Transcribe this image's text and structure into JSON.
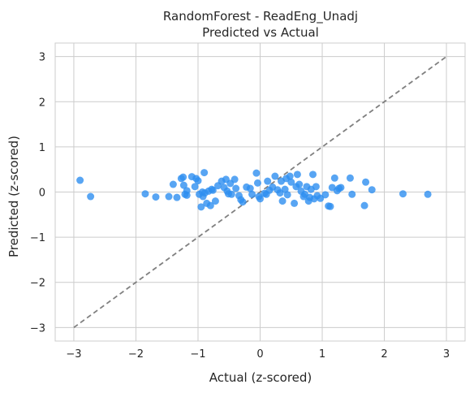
{
  "chart_data": {
    "type": "scatter",
    "title": "RandomForest - ReadEng_Unadj",
    "subtitle": "Predicted vs Actual",
    "xlabel": "Actual (z-scored)",
    "ylabel": "Predicted (z-scored)",
    "xlim": [
      -3.3,
      3.3
    ],
    "ylim": [
      -3.3,
      3.3
    ],
    "xticks": [
      -3,
      -2,
      -1,
      0,
      1,
      2,
      3
    ],
    "yticks": [
      -3,
      -2,
      -1,
      0,
      1,
      2,
      3
    ],
    "xtick_labels": [
      "−3",
      "−2",
      "−1",
      "0",
      "1",
      "2",
      "3"
    ],
    "ytick_labels": [
      "−3",
      "−2",
      "−1",
      "0",
      "1",
      "2",
      "3"
    ],
    "grid": true,
    "point_color": "#2e8ff0",
    "reference_line": {
      "style": "dashed",
      "color": "#808080",
      "x": [
        -3,
        3
      ],
      "y": [
        -3,
        3
      ]
    },
    "points": [
      {
        "x": -2.9,
        "y": 0.26
      },
      {
        "x": -2.73,
        "y": -0.1
      },
      {
        "x": -1.85,
        "y": -0.04
      },
      {
        "x": -1.68,
        "y": -0.11
      },
      {
        "x": -1.47,
        "y": -0.1
      },
      {
        "x": -1.4,
        "y": 0.17
      },
      {
        "x": -1.34,
        "y": -0.12
      },
      {
        "x": -1.27,
        "y": 0.3
      },
      {
        "x": -1.24,
        "y": 0.33
      },
      {
        "x": -1.23,
        "y": 0.15
      },
      {
        "x": -1.21,
        "y": -0.05
      },
      {
        "x": -1.18,
        "y": -0.07
      },
      {
        "x": -1.18,
        "y": 0.03
      },
      {
        "x": -1.1,
        "y": 0.34
      },
      {
        "x": -1.05,
        "y": 0.12
      },
      {
        "x": -1.03,
        "y": 0.3
      },
      {
        "x": -1.0,
        "y": 0.25
      },
      {
        "x": -0.98,
        "y": -0.05
      },
      {
        "x": -0.95,
        "y": -0.33
      },
      {
        "x": -0.93,
        "y": 0.0
      },
      {
        "x": -0.92,
        "y": -0.1
      },
      {
        "x": -0.9,
        "y": 0.43
      },
      {
        "x": -0.89,
        "y": -0.02
      },
      {
        "x": -0.86,
        "y": -0.25
      },
      {
        "x": -0.83,
        "y": 0.02
      },
      {
        "x": -0.8,
        "y": -0.3
      },
      {
        "x": -0.78,
        "y": 0.06
      },
      {
        "x": -0.76,
        "y": 0.04
      },
      {
        "x": -0.72,
        "y": -0.2
      },
      {
        "x": -0.68,
        "y": 0.14
      },
      {
        "x": -0.62,
        "y": 0.24
      },
      {
        "x": -0.58,
        "y": 0.1
      },
      {
        "x": -0.55,
        "y": 0.28
      },
      {
        "x": -0.53,
        "y": 0.02
      },
      {
        "x": -0.51,
        "y": -0.04
      },
      {
        "x": -0.48,
        "y": 0.19
      },
      {
        "x": -0.46,
        "y": -0.05
      },
      {
        "x": -0.41,
        "y": 0.28
      },
      {
        "x": -0.39,
        "y": 0.08
      },
      {
        "x": -0.34,
        "y": -0.08
      },
      {
        "x": -0.31,
        "y": -0.17
      },
      {
        "x": -0.28,
        "y": -0.22
      },
      {
        "x": -0.22,
        "y": 0.11
      },
      {
        "x": -0.16,
        "y": 0.08
      },
      {
        "x": -0.13,
        "y": -0.05
      },
      {
        "x": -0.06,
        "y": 0.42
      },
      {
        "x": -0.04,
        "y": 0.2
      },
      {
        "x": -0.02,
        "y": -0.1
      },
      {
        "x": 0.0,
        "y": -0.15
      },
      {
        "x": 0.07,
        "y": -0.03
      },
      {
        "x": 0.1,
        "y": -0.05
      },
      {
        "x": 0.12,
        "y": 0.24
      },
      {
        "x": 0.15,
        "y": 0.04
      },
      {
        "x": 0.2,
        "y": 0.11
      },
      {
        "x": 0.24,
        "y": 0.35
      },
      {
        "x": 0.28,
        "y": 0.05
      },
      {
        "x": 0.32,
        "y": -0.02
      },
      {
        "x": 0.34,
        "y": 0.24
      },
      {
        "x": 0.36,
        "y": -0.2
      },
      {
        "x": 0.4,
        "y": 0.06
      },
      {
        "x": 0.42,
        "y": 0.3
      },
      {
        "x": 0.44,
        "y": -0.06
      },
      {
        "x": 0.48,
        "y": 0.35
      },
      {
        "x": 0.5,
        "y": 0.22
      },
      {
        "x": 0.55,
        "y": -0.25
      },
      {
        "x": 0.58,
        "y": 0.12
      },
      {
        "x": 0.6,
        "y": 0.39
      },
      {
        "x": 0.63,
        "y": 0.17
      },
      {
        "x": 0.66,
        "y": 0.02
      },
      {
        "x": 0.7,
        "y": -0.1
      },
      {
        "x": 0.72,
        "y": -0.05
      },
      {
        "x": 0.75,
        "y": 0.12
      },
      {
        "x": 0.78,
        "y": -0.2
      },
      {
        "x": 0.8,
        "y": -0.12
      },
      {
        "x": 0.82,
        "y": 0.06
      },
      {
        "x": 0.85,
        "y": 0.39
      },
      {
        "x": 0.87,
        "y": -0.15
      },
      {
        "x": 0.9,
        "y": 0.12
      },
      {
        "x": 0.92,
        "y": -0.08
      },
      {
        "x": 0.97,
        "y": -0.14
      },
      {
        "x": 1.05,
        "y": -0.06
      },
      {
        "x": 1.1,
        "y": -0.31
      },
      {
        "x": 1.13,
        "y": -0.32
      },
      {
        "x": 1.16,
        "y": 0.1
      },
      {
        "x": 1.2,
        "y": 0.31
      },
      {
        "x": 1.24,
        "y": 0.03
      },
      {
        "x": 1.27,
        "y": 0.08
      },
      {
        "x": 1.3,
        "y": 0.1
      },
      {
        "x": 1.45,
        "y": 0.31
      },
      {
        "x": 1.48,
        "y": -0.05
      },
      {
        "x": 1.68,
        "y": -0.3
      },
      {
        "x": 1.7,
        "y": 0.22
      },
      {
        "x": 1.8,
        "y": 0.05
      },
      {
        "x": 2.3,
        "y": -0.04
      },
      {
        "x": 2.7,
        "y": -0.05
      }
    ]
  }
}
